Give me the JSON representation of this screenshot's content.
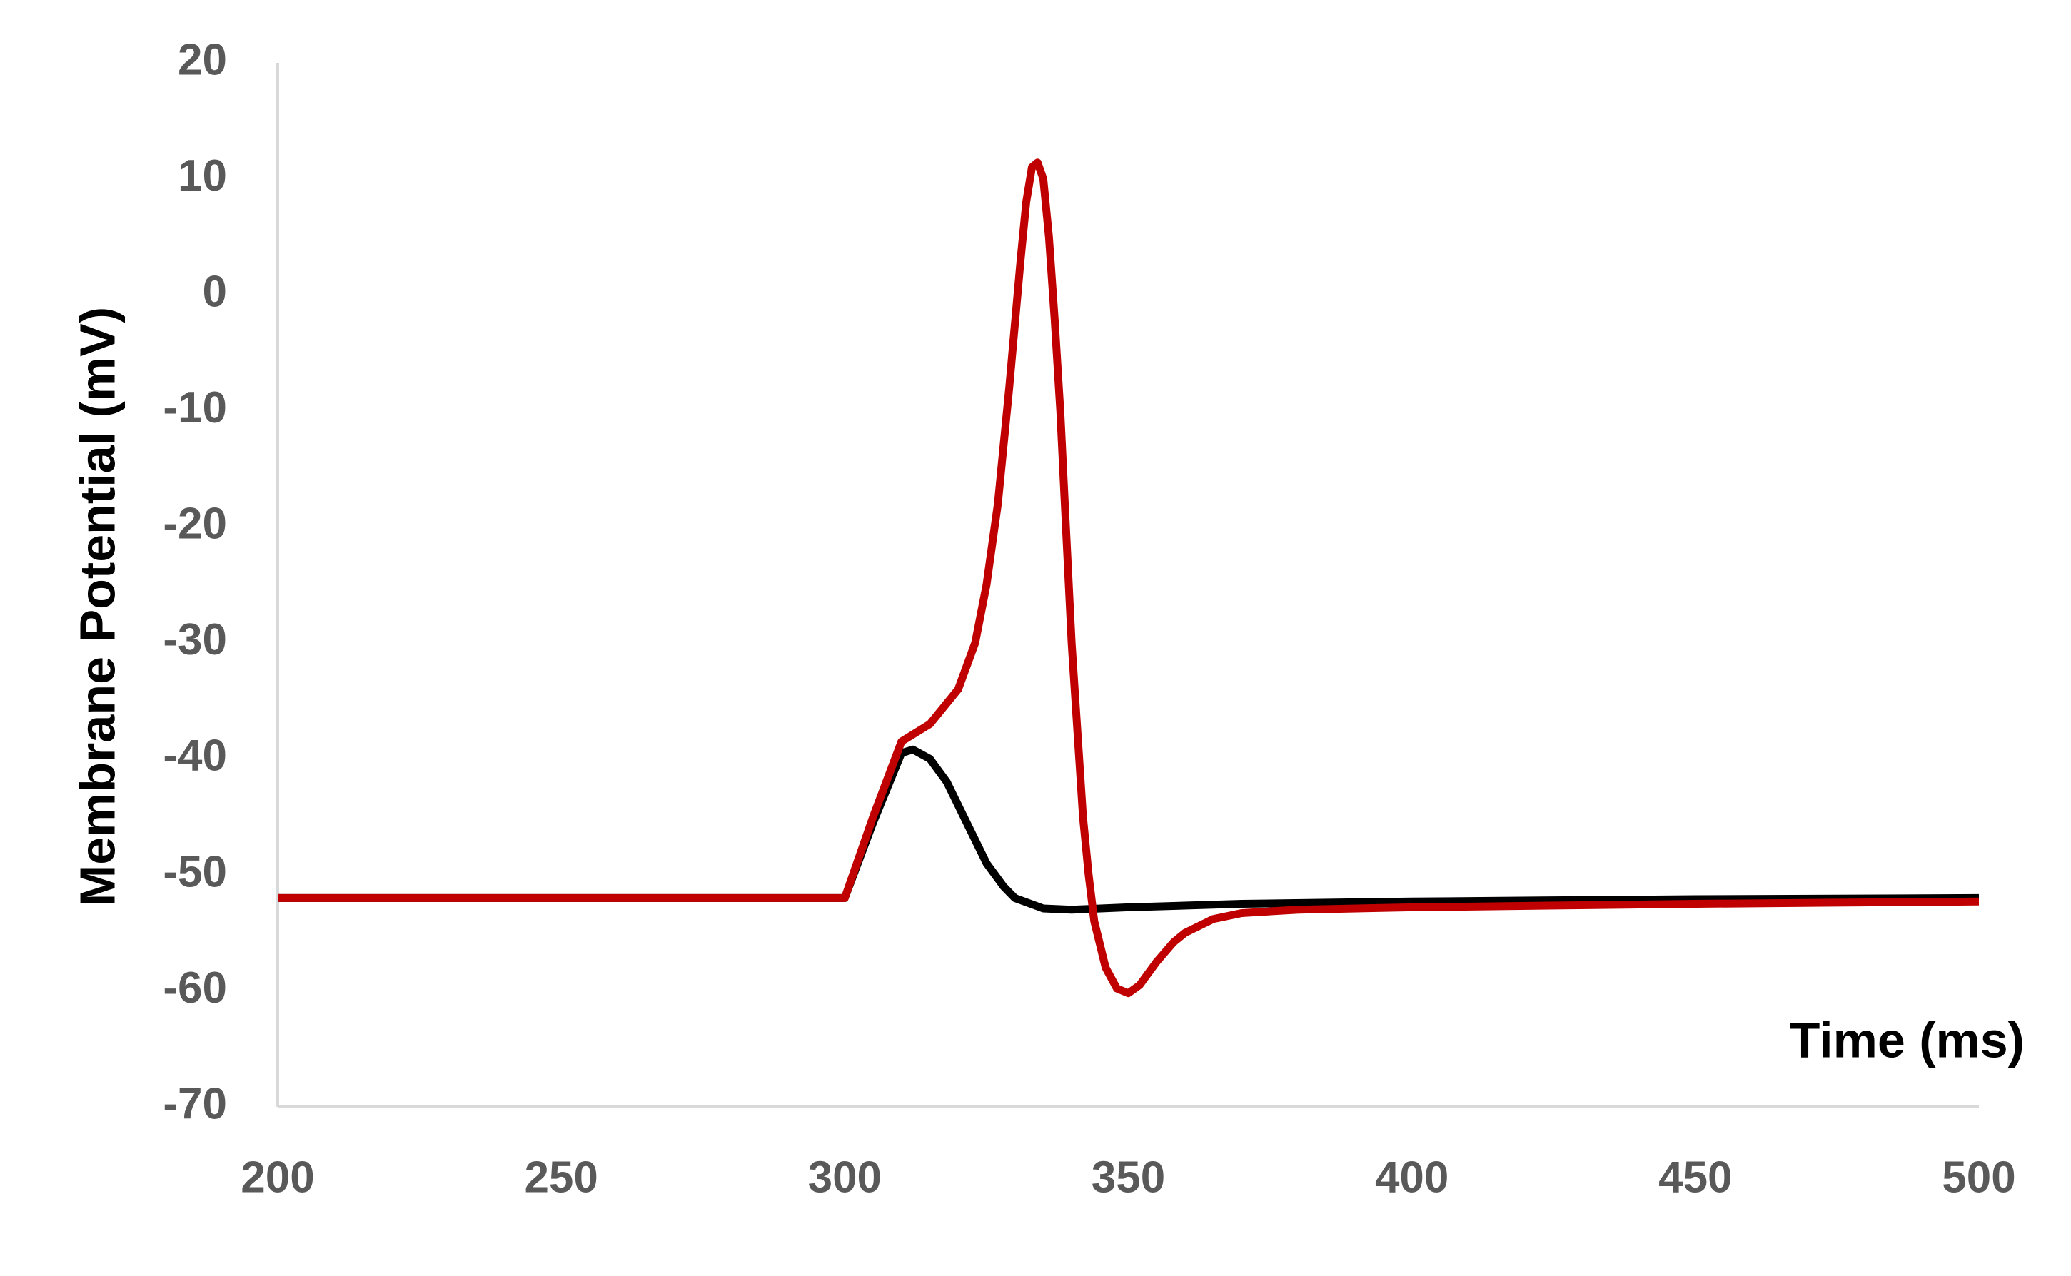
{
  "chart_data": {
    "type": "line",
    "x_label": "Time (ms)",
    "y_label": "Membrane Potential (mV)",
    "xlim": [
      200,
      500
    ],
    "ylim": [
      -70,
      20
    ],
    "xticks": [
      200,
      250,
      300,
      350,
      400,
      450,
      500
    ],
    "yticks": [
      -70,
      -60,
      -50,
      -40,
      -30,
      -20,
      -10,
      0,
      10,
      20
    ],
    "grid": false,
    "series": [
      {
        "color": "#000000",
        "x": [
          200,
          300,
          305,
          310,
          312,
          315,
          318,
          320,
          323,
          325,
          328,
          330,
          335,
          340,
          350,
          370,
          400,
          450,
          500
        ],
        "values": [
          -52,
          -52,
          -45.5,
          -39.5,
          -39.2,
          -40,
          -42,
          -44,
          -47,
          -49,
          -51,
          -52,
          -52.9,
          -53,
          -52.8,
          -52.5,
          -52.3,
          -52.1,
          -52
        ]
      },
      {
        "color": "#c00000",
        "x": [
          200,
          300,
          305,
          310,
          315,
          320,
          323,
          325,
          327,
          329,
          331,
          332,
          333,
          334,
          335,
          336,
          337,
          338,
          339,
          340,
          342,
          343,
          344,
          346,
          348,
          350,
          352,
          355,
          358,
          360,
          365,
          370,
          380,
          400,
          450,
          500
        ],
        "values": [
          -52,
          -52,
          -45,
          -38.5,
          -37,
          -34,
          -30,
          -25,
          -18,
          -8,
          3,
          8,
          11,
          11.4,
          10,
          5,
          -2,
          -10,
          -20,
          -30,
          -45,
          -50,
          -54,
          -58,
          -59.8,
          -60.2,
          -59.5,
          -57.5,
          -55.8,
          -55,
          -53.8,
          -53.3,
          -53,
          -52.8,
          -52.5,
          -52.3
        ]
      }
    ]
  }
}
